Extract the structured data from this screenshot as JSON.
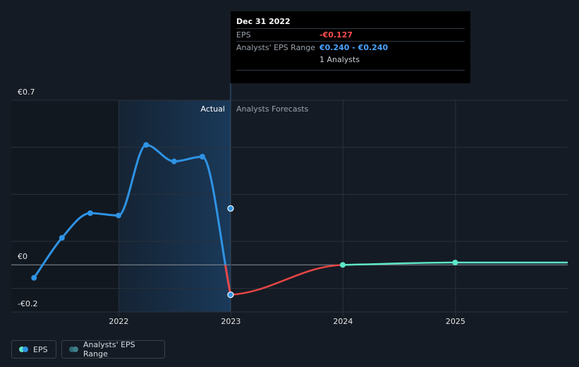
{
  "tooltip": {
    "date": "Dec 31 2022",
    "eps_label": "EPS",
    "eps_value": "-€0.127",
    "range_label": "Analysts' EPS Range",
    "range_value": "€0.240 - €0.240",
    "analysts": "1 Analysts"
  },
  "legend": {
    "eps_label": "EPS",
    "range_label": "Analysts' EPS Range"
  },
  "colors": {
    "eps_blue": "#2f93e4",
    "eps_red": "#e64545",
    "forecast": "#5ee6c8",
    "range_dot": "#3f7f8a",
    "background": "#151b24"
  },
  "chart_data": {
    "type": "line",
    "title": "",
    "xlabel": "",
    "ylabel": "",
    "ylim": [
      -0.2,
      0.7
    ],
    "ytick_labels": [
      "€0.7",
      "€0",
      "-€0.2"
    ],
    "xtick_labels": [
      "2022",
      "2023",
      "2024",
      "2025"
    ],
    "region_labels": {
      "actual": "Actual",
      "forecast": "Analysts Forecasts"
    },
    "series": [
      {
        "name": "EPS",
        "x": [
          "2021-03-31",
          "2021-06-30",
          "2021-09-30",
          "2021-12-31",
          "2022-03-31",
          "2022-06-30",
          "2022-09-30",
          "2022-12-31"
        ],
        "values": [
          -0.055,
          0.115,
          0.22,
          0.21,
          0.51,
          0.44,
          0.46,
          -0.127
        ]
      },
      {
        "name": "Analysts Forecasts",
        "x": [
          "2022-12-31",
          "2023-12-31",
          "2024-12-31",
          "2025-12-31"
        ],
        "values": [
          -0.127,
          0.0,
          0.01,
          0.01
        ]
      }
    ],
    "analyst_range_point": {
      "x": "2022-12-31",
      "low": 0.24,
      "high": 0.24
    }
  }
}
